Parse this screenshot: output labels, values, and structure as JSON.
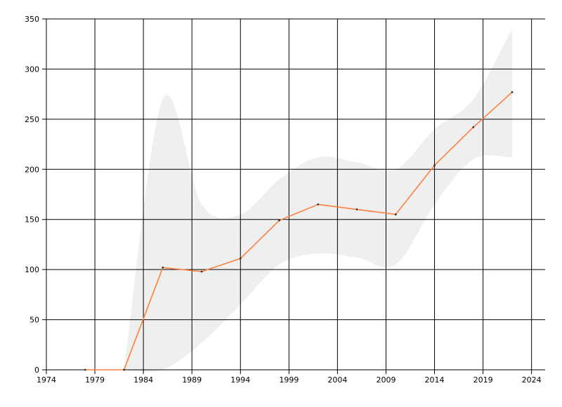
{
  "chart_data": {
    "type": "line",
    "x": [
      1978,
      1982,
      1986,
      1990,
      1994,
      1998,
      2002,
      2006,
      2010,
      2014,
      2018,
      2022
    ],
    "series": [
      {
        "color": "#ff7f3f",
        "values": [
          0,
          0,
          102,
          98,
          111,
          149,
          165,
          160,
          155,
          204,
          242,
          277
        ]
      }
    ],
    "band": {
      "color": "#efefef",
      "x": [
        1982,
        1986,
        1990,
        1994,
        1998,
        2002,
        2006,
        2010,
        2014,
        2018,
        2022
      ],
      "upper": [
        0,
        270,
        165,
        155,
        190,
        212,
        207,
        200,
        240,
        270,
        340
      ],
      "lower": [
        0,
        0,
        27,
        65,
        105,
        116,
        112,
        105,
        165,
        210,
        212
      ]
    },
    "xlim": [
      1974,
      2025.4
    ],
    "xticks": [
      1974,
      1979,
      1984,
      1989,
      1994,
      1999,
      2004,
      2009,
      2014,
      2019,
      2024
    ],
    "ylim": [
      0,
      350
    ],
    "yticks": [
      0,
      50,
      100,
      150,
      200,
      250,
      300,
      350
    ],
    "grid": true
  }
}
